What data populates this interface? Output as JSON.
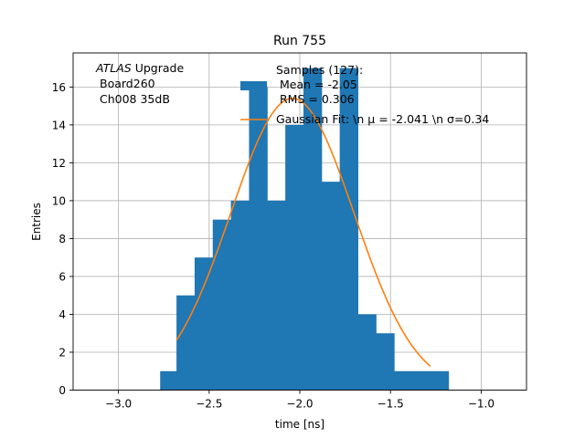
{
  "chart_data": {
    "type": "bar",
    "title": "Run 755",
    "xlabel": "time [ns]",
    "ylabel": "Entries",
    "xlim": [
      -3.25,
      -0.75
    ],
    "ylim": [
      0,
      17.8
    ],
    "xticks": [
      -3.0,
      -2.5,
      -2.0,
      -1.5,
      -1.0
    ],
    "xtick_labels": [
      "−3.0",
      "−2.5",
      "−2.0",
      "−1.5",
      "−1.0"
    ],
    "yticks": [
      0,
      2,
      4,
      6,
      8,
      10,
      12,
      14,
      16
    ],
    "ytick_labels": [
      "0",
      "2",
      "4",
      "6",
      "8",
      "10",
      "12",
      "14",
      "16"
    ],
    "grid": true,
    "bin_edges": [
      -2.77,
      -2.68,
      -2.58,
      -2.48,
      -2.38,
      -2.28,
      -2.18,
      -2.08,
      -1.98,
      -1.88,
      -1.78,
      -1.68,
      -1.58,
      -1.48,
      -1.38,
      -1.28,
      -1.18
    ],
    "counts": [
      1,
      5,
      7,
      9,
      10,
      16,
      10,
      14,
      17,
      11,
      17,
      4,
      3,
      1,
      1,
      1
    ],
    "fit_curve": {
      "mu": -2.041,
      "sigma": 0.34,
      "amplitude": 15.4,
      "x_range": [
        -2.68,
        -1.28
      ]
    },
    "annotation_lines": [
      "ATLAS",
      " Upgrade",
      "Board260",
      "Ch008 35dB"
    ],
    "legend": {
      "placement": "top-right",
      "histogram_label": [
        "Samples (127):",
        "Mean = -2.05",
        "RMS = 0.306"
      ],
      "fit_label": "Gaussian Fit: \\n μ = -2.041 \\n σ=0.34"
    },
    "colors": {
      "bars": "#1f77b4",
      "fit": "#ff7f0e",
      "grid": "#b0b0b0"
    }
  }
}
